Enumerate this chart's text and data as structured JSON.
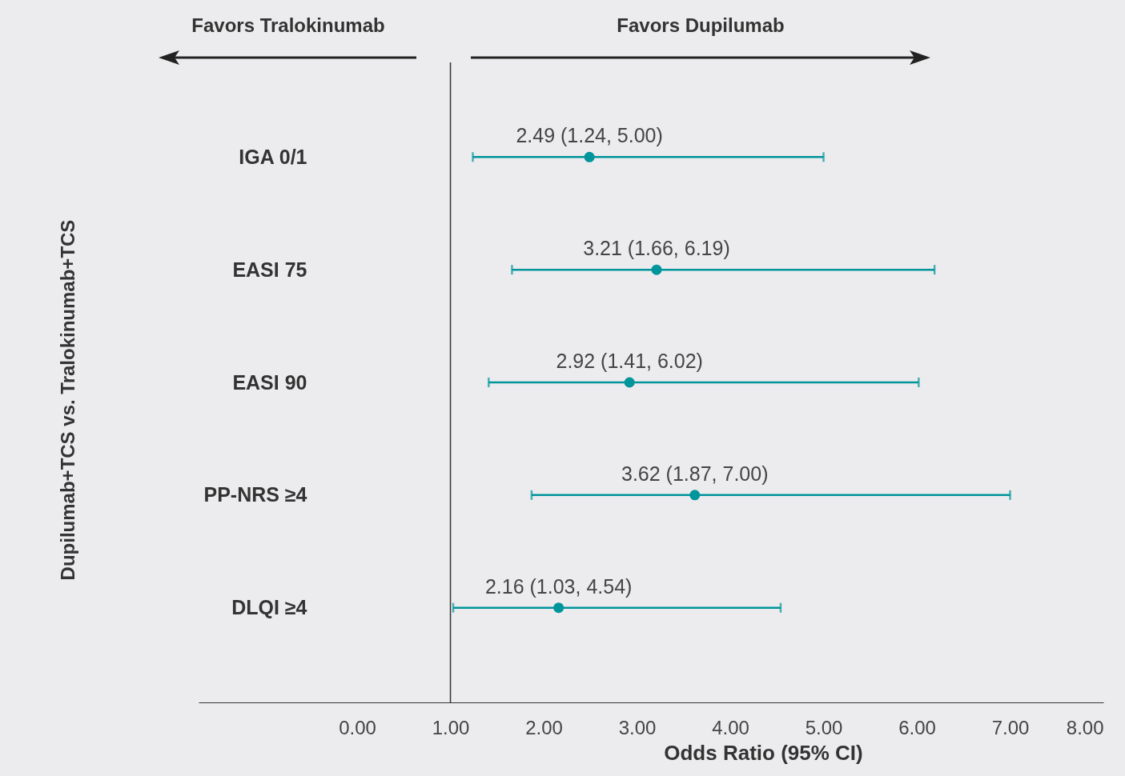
{
  "chart_data": {
    "type": "scatter",
    "orientation": "horizontal",
    "xlabel": "Odds Ratio (95% CI)",
    "annotations": [
      "Favors Tralokinumab",
      "Favors Dupilumab",
      "Dupilumab+TCS vs. Tralokinumab+TCS"
    ],
    "categories": [
      "IGA 0/1",
      "EASI 75",
      "EASI 90",
      "PP-NRS ≥4",
      "DLQI ≥4"
    ],
    "values": [
      2.49,
      3.21,
      2.92,
      3.62,
      2.16
    ],
    "errors": [
      [
        1.24,
        5.0
      ],
      [
        1.66,
        6.19
      ],
      [
        1.41,
        6.02
      ],
      [
        1.87,
        7.0
      ],
      [
        1.03,
        4.54
      ]
    ],
    "value_labels": [
      "2.49 (1.24, 5.00)",
      "3.21 (1.66, 6.19)",
      "2.92 (1.41, 6.02)",
      "3.62 (1.87, 7.00)",
      "2.16 (1.03, 4.54)"
    ],
    "color": "#00959b",
    "marker": "circle",
    "xlim": [
      -1.7,
      8
    ],
    "xticks": [
      {
        "value": 0,
        "label": "0.00"
      },
      {
        "value": 1,
        "label": "1.00"
      },
      {
        "value": 2,
        "label": "2.00"
      },
      {
        "value": 3,
        "label": "3.00"
      },
      {
        "value": 4,
        "label": "4.00"
      },
      {
        "value": 5,
        "label": "5.00"
      },
      {
        "value": 6,
        "label": "6.00"
      },
      {
        "value": 7,
        "label": "7.00"
      },
      {
        "value": 8,
        "label": "8.00"
      }
    ],
    "ref_lines": [
      {
        "axis": "x",
        "value": 1,
        "color": "#333333"
      }
    ],
    "grid": false
  }
}
